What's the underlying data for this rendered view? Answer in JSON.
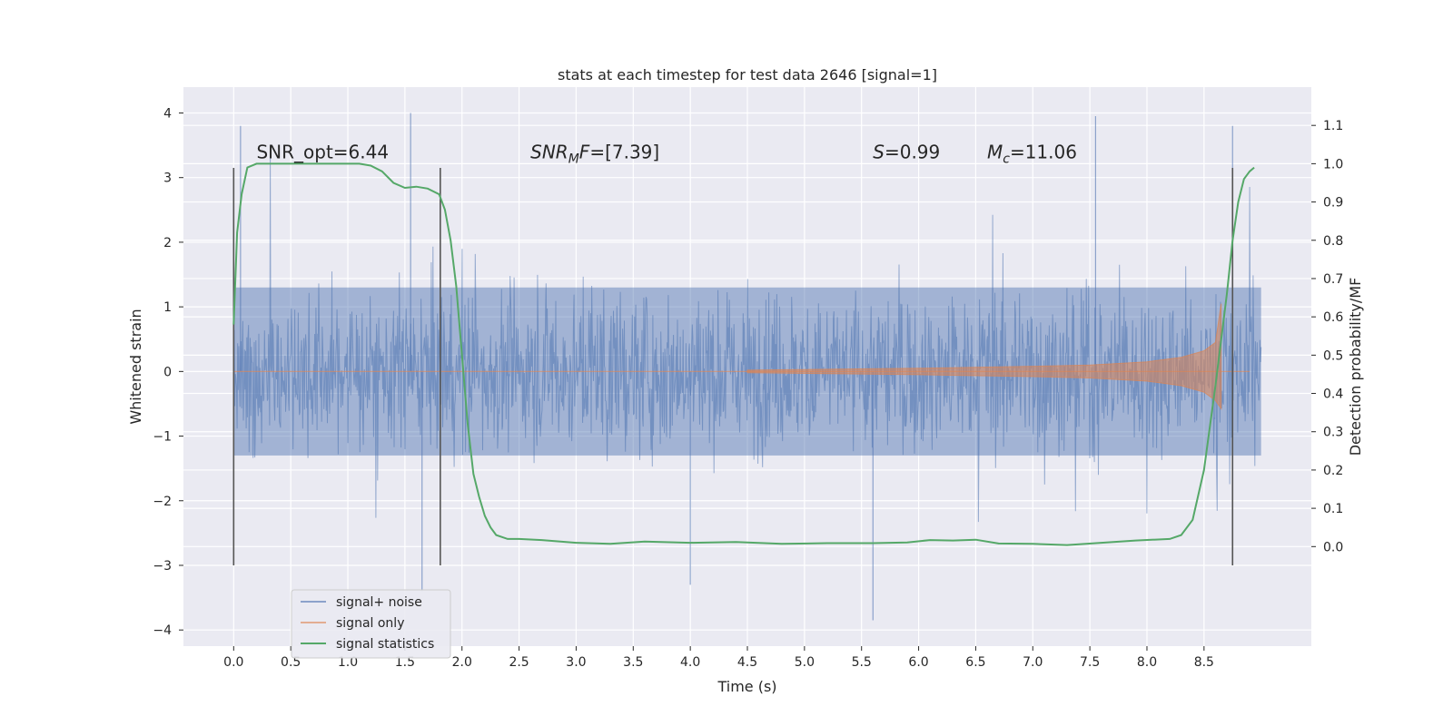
{
  "chart_data": {
    "type": "line",
    "title": "stats at each timestep for test data 2646 [signal=1]",
    "xlabel": "Time (s)",
    "ylabel": "Whitened strain",
    "y2label": "Detection probability/MF",
    "xlim": [
      -0.44,
      9.44
    ],
    "ylim": [
      -4.25,
      4.4
    ],
    "y2lim": [
      -0.26,
      1.2
    ],
    "xticks": [
      0.0,
      0.5,
      1.0,
      1.5,
      2.0,
      2.5,
      3.0,
      3.5,
      4.0,
      4.5,
      5.0,
      5.5,
      6.0,
      6.5,
      7.0,
      7.5,
      8.0,
      8.5
    ],
    "xtick_labels": [
      "0.0",
      "0.5",
      "1.0",
      "1.5",
      "2.0",
      "2.5",
      "3.0",
      "3.5",
      "4.0",
      "4.5",
      "5.0",
      "5.5",
      "6.0",
      "6.5",
      "7.0",
      "7.5",
      "8.0",
      "8.5"
    ],
    "yticks": [
      -4,
      -3,
      -2,
      -1,
      0,
      1,
      2,
      3,
      4
    ],
    "ytick_labels": [
      "−4",
      "−3",
      "−2",
      "−1",
      "0",
      "1",
      "2",
      "3",
      "4"
    ],
    "y2ticks": [
      0.0,
      0.1,
      0.2,
      0.3,
      0.4,
      0.5,
      0.6,
      0.7,
      0.8,
      0.9,
      1.0,
      1.1
    ],
    "y2tick_labels": [
      "0.0",
      "0.1",
      "0.2",
      "0.3",
      "0.4",
      "0.5",
      "0.6",
      "0.7",
      "0.8",
      "0.9",
      "1.0",
      "1.1"
    ],
    "grid": true,
    "legend_position": "lower-left",
    "series": [
      {
        "name": "signal+ noise",
        "axis": "left",
        "color": "#4c72b0",
        "x_range": [
          0.0,
          9.0
        ],
        "typical_amplitude": 1.3,
        "max_peak": 4.0,
        "min_peak": -3.85
      },
      {
        "name": "signal only",
        "axis": "left",
        "color": "#dd8452",
        "x": [
          4.5,
          6.0,
          7.0,
          7.5,
          8.0,
          8.3,
          8.5,
          8.6,
          8.65
        ],
        "envelope": [
          0.02,
          0.05,
          0.08,
          0.1,
          0.15,
          0.22,
          0.32,
          0.45,
          1.05
        ]
      },
      {
        "name": "signal statistics",
        "axis": "right",
        "color": "#55a868",
        "x": [
          0.0,
          0.03,
          0.07,
          0.12,
          0.2,
          0.3,
          0.5,
          0.8,
          1.0,
          1.1,
          1.2,
          1.3,
          1.4,
          1.5,
          1.6,
          1.7,
          1.8,
          1.85,
          1.9,
          1.95,
          2.0,
          2.05,
          2.1,
          2.15,
          2.2,
          2.25,
          2.3,
          2.4,
          2.5,
          2.7,
          3.0,
          3.3,
          3.6,
          4.0,
          4.4,
          4.8,
          5.2,
          5.6,
          5.9,
          6.1,
          6.3,
          6.5,
          6.7,
          7.0,
          7.3,
          7.6,
          7.9,
          8.2,
          8.3,
          8.4,
          8.5,
          8.6,
          8.7,
          8.75,
          8.8,
          8.85,
          8.9,
          8.94
        ],
        "values": [
          0.58,
          0.82,
          0.92,
          0.99,
          1.0,
          1.0,
          1.0,
          1.0,
          1.0,
          1.0,
          0.995,
          0.98,
          0.95,
          0.937,
          0.94,
          0.935,
          0.92,
          0.88,
          0.8,
          0.68,
          0.5,
          0.32,
          0.19,
          0.13,
          0.08,
          0.05,
          0.03,
          0.02,
          0.02,
          0.017,
          0.01,
          0.007,
          0.013,
          0.01,
          0.012,
          0.007,
          0.009,
          0.009,
          0.011,
          0.017,
          0.016,
          0.018,
          0.008,
          0.007,
          0.004,
          0.01,
          0.016,
          0.02,
          0.03,
          0.07,
          0.2,
          0.42,
          0.66,
          0.8,
          0.9,
          0.96,
          0.98,
          0.99
        ]
      }
    ],
    "vertical_markers": [
      {
        "x": 0.0,
        "y_range": [
          -3.0,
          3.15
        ]
      },
      {
        "x": 1.81,
        "y_range": [
          -3.0,
          3.15
        ]
      },
      {
        "x": 8.75,
        "y_range": [
          -3.0,
          3.15
        ]
      }
    ],
    "annotations": [
      {
        "id": "snr-opt",
        "prefix": "SNR_opt",
        "sub": "",
        "suffix": "",
        "value": "=6.44",
        "x": 0.2,
        "y": 3.3
      },
      {
        "id": "snr-mf",
        "prefix": "SNR",
        "sub": "M",
        "suffix": "F",
        "value": "=[7.39]",
        "x": 2.6,
        "y": 3.3
      },
      {
        "id": "s-stat",
        "prefix": "S",
        "sub": "",
        "suffix": "",
        "value": "=0.99",
        "x": 5.6,
        "y": 3.3
      },
      {
        "id": "mc-stat",
        "prefix": "M",
        "sub": "c",
        "suffix": "",
        "value": "=11.06",
        "x": 6.6,
        "y": 3.3
      }
    ]
  }
}
